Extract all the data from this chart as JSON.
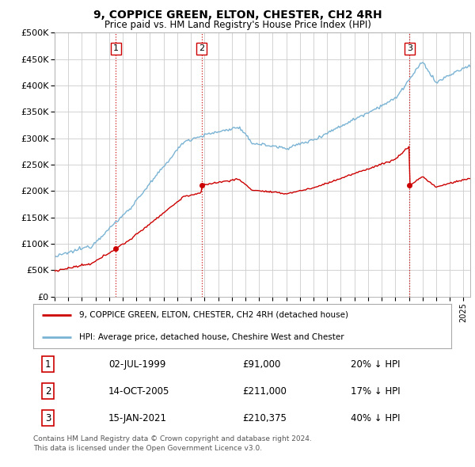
{
  "title": "9, COPPICE GREEN, ELTON, CHESTER, CH2 4RH",
  "subtitle": "Price paid vs. HM Land Registry's House Price Index (HPI)",
  "ylim": [
    0,
    500000
  ],
  "xlim_start": 1995.0,
  "xlim_end": 2025.5,
  "sale_dates_num": [
    1999.5,
    2005.79,
    2021.04
  ],
  "sale_prices": [
    91000,
    211000,
    210375
  ],
  "sale_labels": [
    "1",
    "2",
    "3"
  ],
  "vline_color": "#cc0000",
  "legend_entries": [
    "9, COPPICE GREEN, ELTON, CHESTER, CH2 4RH (detached house)",
    "HPI: Average price, detached house, Cheshire West and Chester"
  ],
  "table_rows": [
    [
      "1",
      "02-JUL-1999",
      "£91,000",
      "20% ↓ HPI"
    ],
    [
      "2",
      "14-OCT-2005",
      "£211,000",
      "17% ↓ HPI"
    ],
    [
      "3",
      "15-JAN-2021",
      "£210,375",
      "40% ↓ HPI"
    ]
  ],
  "footer": "Contains HM Land Registry data © Crown copyright and database right 2024.\nThis data is licensed under the Open Government Licence v3.0.",
  "hpi_color": "#7ab3d4",
  "price_color": "#cc0000",
  "background_color": "#ffffff",
  "grid_color": "#cccccc"
}
